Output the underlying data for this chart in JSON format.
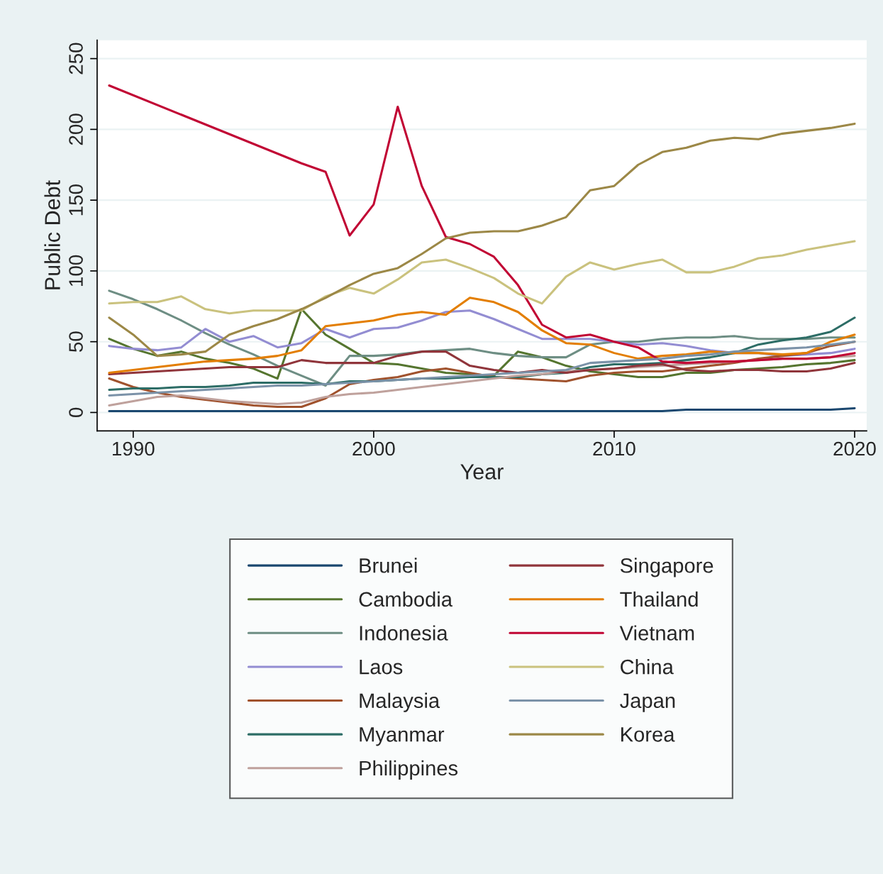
{
  "chart_data": {
    "type": "line",
    "xlabel": "Year",
    "ylabel": "Public Debt",
    "xlim": [
      1988.5,
      2020.5
    ],
    "ylim": [
      -13,
      263
    ],
    "xticks": [
      1990,
      2000,
      2010,
      2020
    ],
    "yticks": [
      0,
      50,
      100,
      150,
      200,
      250
    ],
    "grid": "y",
    "legend": "bottom",
    "line_style": "solid",
    "marker": "none",
    "x": [
      1989,
      1990,
      1991,
      1992,
      1993,
      1994,
      1995,
      1996,
      1997,
      1998,
      1999,
      2000,
      2001,
      2002,
      2003,
      2004,
      2005,
      2006,
      2007,
      2008,
      2009,
      2010,
      2011,
      2012,
      2013,
      2014,
      2015,
      2016,
      2017,
      2018,
      2019,
      2020
    ],
    "series": [
      {
        "name": "Brunei",
        "color": "#1a476f",
        "values": [
          1,
          1,
          1,
          1,
          1,
          1,
          1,
          1,
          1,
          1,
          1,
          1,
          1,
          1,
          1,
          1,
          1,
          1,
          1,
          1,
          1,
          1,
          1,
          1,
          2,
          2,
          2,
          2,
          2,
          2,
          2,
          3
        ]
      },
      {
        "name": "Cambodia",
        "color": "#55752f",
        "values": [
          52,
          45,
          40,
          43,
          38,
          35,
          31,
          24,
          73,
          55,
          45,
          35,
          34,
          31,
          28,
          27,
          26,
          43,
          39,
          33,
          29,
          27,
          25,
          25,
          28,
          28,
          30,
          31,
          32,
          34,
          35,
          37
        ]
      },
      {
        "name": "Indonesia",
        "color": "#6e8e84",
        "values": [
          86,
          80,
          73,
          65,
          56,
          48,
          41,
          33,
          26,
          19,
          40,
          40,
          41,
          43,
          44,
          45,
          42,
          40,
          39,
          39,
          48,
          50,
          50,
          52,
          53,
          53,
          54,
          52,
          52,
          52,
          53,
          53
        ]
      },
      {
        "name": "Laos",
        "color": "#938dd2",
        "values": [
          47,
          45,
          44,
          46,
          59,
          50,
          54,
          46,
          49,
          59,
          53,
          59,
          60,
          65,
          71,
          72,
          66,
          59,
          52,
          52,
          52,
          50,
          48,
          49,
          47,
          44,
          42,
          42,
          40,
          41,
          42,
          45
        ]
      },
      {
        "name": "Malaysia",
        "color": "#a0522d",
        "values": [
          24,
          18,
          14,
          11,
          9,
          7,
          5,
          4,
          4,
          10,
          20,
          23,
          25,
          29,
          31,
          28,
          25,
          24,
          23,
          22,
          26,
          28,
          29,
          29,
          31,
          33,
          35,
          38,
          40,
          42,
          47,
          50
        ]
      },
      {
        "name": "Myanmar",
        "color": "#2d6d66",
        "values": [
          16,
          17,
          17,
          18,
          18,
          19,
          21,
          21,
          21,
          20,
          22,
          22,
          23,
          24,
          24,
          25,
          25,
          25,
          27,
          28,
          32,
          34,
          34,
          35,
          37,
          39,
          42,
          48,
          51,
          53,
          57,
          67
        ]
      },
      {
        "name": "Philippines",
        "color": "#bfa19c",
        "values": [
          5,
          8,
          11,
          12,
          10,
          8,
          7,
          6,
          7,
          11,
          13,
          14,
          16,
          18,
          20,
          22,
          24,
          26,
          27,
          29,
          30,
          31,
          32,
          33,
          34,
          35,
          36,
          37,
          38,
          38,
          39,
          40
        ]
      },
      {
        "name": "Singapore",
        "color": "#90353b",
        "values": [
          27,
          28,
          29,
          30,
          31,
          32,
          32,
          32,
          37,
          35,
          35,
          35,
          40,
          43,
          43,
          33,
          30,
          28,
          30,
          28,
          30,
          31,
          33,
          34,
          30,
          29,
          30,
          30,
          29,
          29,
          31,
          35
        ]
      },
      {
        "name": "Thailand",
        "color": "#e37e00",
        "values": [
          28,
          30,
          32,
          34,
          36,
          37,
          38,
          40,
          44,
          61,
          63,
          65,
          69,
          71,
          69,
          81,
          78,
          71,
          58,
          49,
          48,
          42,
          38,
          40,
          41,
          43,
          42,
          42,
          41,
          42,
          50,
          55
        ]
      },
      {
        "name": "Vietnam",
        "color": "#c10534",
        "x": [
          1989,
          1997,
          1998,
          1999,
          2000,
          2001,
          2002,
          2003,
          2004,
          2005,
          2006,
          2007,
          2008,
          2009,
          2010,
          2011,
          2012,
          2013,
          2014,
          2015,
          2016,
          2017,
          2018,
          2019,
          2020
        ],
        "values": [
          231,
          176,
          170,
          125,
          147,
          216,
          160,
          124,
          119,
          110,
          90,
          62,
          53,
          55,
          50,
          46,
          36,
          35,
          36,
          36,
          37,
          38,
          38,
          39,
          42
        ]
      },
      {
        "name": "China",
        "color": "#cac27e",
        "values": [
          77,
          78,
          78,
          82,
          73,
          70,
          72,
          72,
          72,
          82,
          88,
          84,
          94,
          106,
          108,
          102,
          95,
          84,
          77,
          96,
          106,
          101,
          105,
          108,
          99,
          99,
          103,
          109,
          111,
          115,
          118,
          121
        ]
      },
      {
        "name": "Japan",
        "color": "#7b92a8",
        "values": [
          12,
          13,
          14,
          15,
          16,
          17,
          18,
          19,
          19,
          20,
          21,
          22,
          23,
          24,
          25,
          26,
          27,
          28,
          29,
          30,
          35,
          36,
          37,
          38,
          40,
          41,
          43,
          44,
          45,
          46,
          48,
          50
        ]
      },
      {
        "name": "Korea",
        "color": "#9c8847",
        "values": [
          67,
          55,
          40,
          41,
          43,
          55,
          61,
          66,
          73,
          81,
          90,
          98,
          102,
          112,
          123,
          127,
          128,
          128,
          132,
          138,
          157,
          160,
          175,
          184,
          187,
          192,
          194,
          193,
          197,
          199,
          201,
          204
        ]
      }
    ]
  }
}
